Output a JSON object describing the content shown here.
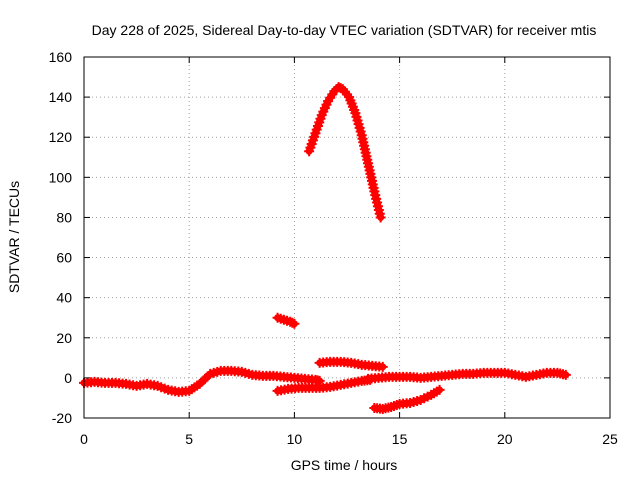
{
  "chart_data": {
    "type": "scatter",
    "title": "Day 228 of 2025, Sidereal Day-to-day VTEC variation (SDTVAR) for receiver mtis",
    "xlabel": "GPS time / hours",
    "ylabel": "SDTVAR / TECUs",
    "xlim": [
      0,
      25
    ],
    "ylim": [
      -20,
      160
    ],
    "xticks": [
      "0",
      "5",
      "10",
      "15",
      "20",
      "25"
    ],
    "yticks": [
      "-20",
      "0",
      "20",
      "40",
      "60",
      "80",
      "100",
      "120",
      "140",
      "160"
    ],
    "grid": true,
    "legend": "none",
    "marker": "plus",
    "series_color": "#ff0000",
    "series": [
      {
        "x": [
          0.0,
          0.5,
          1.0,
          1.5,
          2.0,
          2.5,
          3.0,
          3.5,
          4.0,
          4.5,
          5.0,
          5.5,
          6.0,
          6.5,
          7.0,
          7.5,
          8.0,
          8.5,
          9.0,
          9.5,
          10.0,
          10.5,
          11.0,
          11.2
        ],
        "y": [
          -2.5,
          -2.0,
          -2.5,
          -2.5,
          -3.0,
          -4.0,
          -3.0,
          -4.0,
          -6.0,
          -7.0,
          -6.5,
          -3.0,
          2.0,
          3.5,
          3.5,
          3.0,
          1.5,
          1.0,
          1.0,
          0.5,
          0.0,
          -0.5,
          -1.0,
          -1.5
        ]
      },
      {
        "x": [
          10.7,
          11.0,
          11.3,
          11.6,
          11.9,
          12.1,
          12.3,
          12.6,
          12.9,
          13.2,
          13.5,
          13.8,
          14.1
        ],
        "y": [
          113,
          122,
          131,
          138,
          143,
          145,
          144,
          140,
          132,
          121,
          107,
          93,
          80
        ]
      },
      {
        "x": [
          9.2,
          9.5,
          9.8,
          10.0
        ],
        "y": [
          30,
          29,
          28,
          27
        ]
      },
      {
        "x": [
          9.2,
          9.7,
          10.2,
          10.7,
          11.2,
          11.7,
          12.2,
          12.7,
          13.2,
          13.6
        ],
        "y": [
          -6.5,
          -5.5,
          -5.0,
          -5.0,
          -5.0,
          -4.5,
          -3.5,
          -2.5,
          -1.5,
          -1.0
        ]
      },
      {
        "x": [
          11.2,
          11.7,
          12.2,
          12.7,
          13.2,
          13.7,
          14.2
        ],
        "y": [
          7.5,
          8.0,
          8.0,
          7.5,
          6.5,
          6.0,
          5.5
        ]
      },
      {
        "x": [
          13.5,
          14.0,
          14.5,
          15.0,
          15.5,
          16.0,
          16.5,
          17.0,
          17.5,
          18.0,
          18.5,
          19.0,
          19.5,
          20.0,
          20.5,
          21.0,
          21.5,
          22.0,
          22.5,
          22.9
        ],
        "y": [
          -0.5,
          0.0,
          0.5,
          0.5,
          0.5,
          0.0,
          0.5,
          1.0,
          1.5,
          2.0,
          2.0,
          2.5,
          2.5,
          2.5,
          1.5,
          0.5,
          1.5,
          2.5,
          2.5,
          1.5
        ]
      },
      {
        "x": [
          13.8,
          14.2,
          14.6,
          15.0,
          15.5,
          16.0,
          16.5,
          16.9
        ],
        "y": [
          -15.0,
          -15.5,
          -14.5,
          -13.0,
          -12.5,
          -11.0,
          -8.5,
          -6.0
        ]
      }
    ]
  }
}
